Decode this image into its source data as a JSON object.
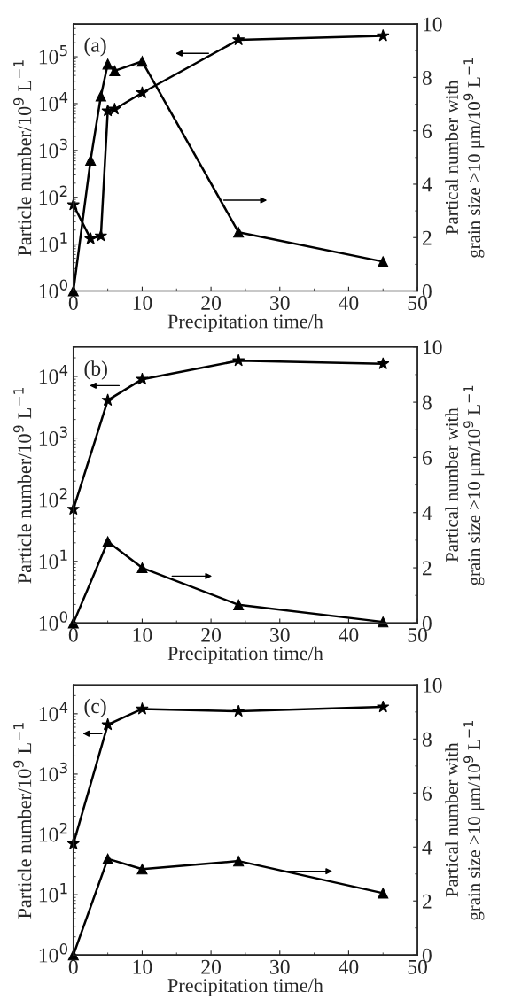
{
  "chart_data": [
    {
      "type": "line",
      "annotations": [
        "(a)"
      ],
      "xlabel": "Precipitation time/h",
      "ylabel": "Particle number/10$^{9}$ L$^{−1}$",
      "y2label": "Partical number with\ngrain size >10 μm/10$^{9}$ L$^{−1}$",
      "log": "y",
      "xlim": [
        0,
        50
      ],
      "xticks": [
        0,
        10,
        20,
        30,
        40,
        50
      ],
      "ylim": [
        1,
        500000
      ],
      "yticks": [
        {
          "value": 1,
          "label": "10$^{0}$"
        },
        {
          "value": 10,
          "label": "10$^{1}$"
        },
        {
          "value": 100,
          "label": "10$^{2}$"
        },
        {
          "value": 1000,
          "label": "10$^{3}$"
        },
        {
          "value": 10000,
          "label": "10$^{4}$"
        },
        {
          "value": 100000,
          "label": "10$^{5}$"
        }
      ],
      "y2lim": [
        0,
        10
      ],
      "y2ticks": [
        0,
        2,
        4,
        6,
        8,
        10
      ],
      "grid": false,
      "legend": false,
      "line_style": "solid",
      "series": [
        {
          "color": "#000000",
          "marker": "star",
          "axis": "y",
          "x": [
            0,
            2.5,
            4,
            5,
            6,
            10,
            24,
            45
          ],
          "values": [
            69,
            13,
            15,
            7000,
            7600,
            17000,
            230000,
            280000
          ]
        },
        {
          "color": "#000000",
          "marker": "triangle",
          "axis": "y2",
          "x": [
            0,
            2.5,
            4,
            5,
            6,
            10,
            24,
            45
          ],
          "values": [
            0,
            4.9,
            7.3,
            8.5,
            8.25,
            8.6,
            2.2,
            1.1
          ]
        }
      ]
    },
    {
      "type": "line",
      "annotations": [
        "(b)"
      ],
      "xlabel": "Precipitation time/h",
      "ylabel": "Particle number/10$^{9}$ L$^{−1}$",
      "y2label": "Partical number with\ngrain size >10 μm/10$^{9}$ L$^{−1}$",
      "log": "y",
      "xlim": [
        0,
        50
      ],
      "xticks": [
        0,
        10,
        20,
        30,
        40,
        50
      ],
      "ylim": [
        1,
        30000
      ],
      "yticks": [
        {
          "value": 1,
          "label": "10$^{0}$"
        },
        {
          "value": 10,
          "label": "10$^{1}$"
        },
        {
          "value": 100,
          "label": "10$^{2}$"
        },
        {
          "value": 1000,
          "label": "10$^{3}$"
        },
        {
          "value": 10000,
          "label": "10$^{4}$"
        }
      ],
      "y2lim": [
        0,
        10
      ],
      "y2ticks": [
        0,
        2,
        4,
        6,
        8,
        10
      ],
      "grid": false,
      "legend": false,
      "line_style": "solid",
      "series": [
        {
          "color": "#000000",
          "marker": "star",
          "axis": "y",
          "x": [
            0,
            5,
            10,
            24,
            45
          ],
          "values": [
            70,
            4100,
            9000,
            18000,
            16000
          ]
        },
        {
          "color": "#000000",
          "marker": "triangle",
          "axis": "y2",
          "x": [
            0,
            5,
            10,
            24,
            45
          ],
          "values": [
            0,
            2.95,
            2.0,
            0.66,
            0.04
          ]
        }
      ]
    },
    {
      "type": "line",
      "annotations": [
        "(c)"
      ],
      "xlabel": "Precipitation time/h",
      "ylabel": "Particle number/10$^{9}$ L$^{−1}$",
      "y2label": "Partical number with\ngrain size >10 μm/10$^{9}$ L$^{−1}$",
      "log": "y",
      "xlim": [
        0,
        50
      ],
      "xticks": [
        0,
        10,
        20,
        30,
        40,
        50
      ],
      "ylim": [
        1,
        30000
      ],
      "yticks": [
        {
          "value": 1,
          "label": "10$^{0}$"
        },
        {
          "value": 10,
          "label": "10$^{1}$"
        },
        {
          "value": 100,
          "label": "10$^{2}$"
        },
        {
          "value": 1000,
          "label": "10$^{3}$"
        },
        {
          "value": 10000,
          "label": "10$^{4}$"
        }
      ],
      "y2lim": [
        0,
        10
      ],
      "y2ticks": [
        0,
        2,
        4,
        6,
        8,
        10
      ],
      "grid": false,
      "legend": false,
      "line_style": "solid",
      "series": [
        {
          "color": "#000000",
          "marker": "star",
          "axis": "y",
          "x": [
            0,
            5,
            10,
            24,
            45
          ],
          "values": [
            70,
            6600,
            12000,
            11000,
            13000
          ]
        },
        {
          "color": "#000000",
          "marker": "triangle",
          "axis": "y2",
          "x": [
            0,
            5,
            10,
            24,
            45
          ],
          "values": [
            0,
            3.56,
            3.18,
            3.48,
            2.29
          ]
        }
      ]
    }
  ]
}
